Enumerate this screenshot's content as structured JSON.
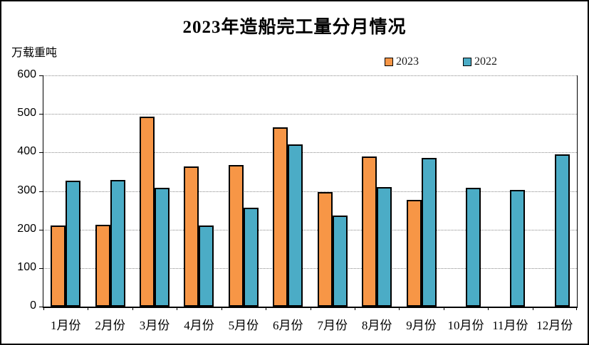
{
  "page": {
    "background_color": "#FFFFFF",
    "border_color": "#000000"
  },
  "chart_data": {
    "type": "bar",
    "title": "2023年造船完工量分月情况",
    "ylabel": "万载重吨",
    "xlabel": "",
    "categories": [
      "1月份",
      "2月份",
      "3月份",
      "4月份",
      "5月份",
      "6月份",
      "7月份",
      "8月份",
      "9月份",
      "10月份",
      "11月份",
      "12月份"
    ],
    "series": [
      {
        "name": "2023",
        "color": "#F79646",
        "values": [
          211,
          213,
          493,
          364,
          368,
          465,
          297,
          389,
          277,
          null,
          null,
          null
        ]
      },
      {
        "name": "2022",
        "color": "#4BACC6",
        "values": [
          326,
          328,
          308,
          210,
          257,
          421,
          236,
          310,
          385,
          308,
          303,
          396
        ]
      }
    ],
    "ylim": [
      0,
      600
    ],
    "y_ticks": [
      0,
      100,
      200,
      300,
      400,
      500,
      600
    ],
    "grid": "horizontal-dotted",
    "legend_position": "top-right",
    "bar_border_color": "#000000"
  }
}
